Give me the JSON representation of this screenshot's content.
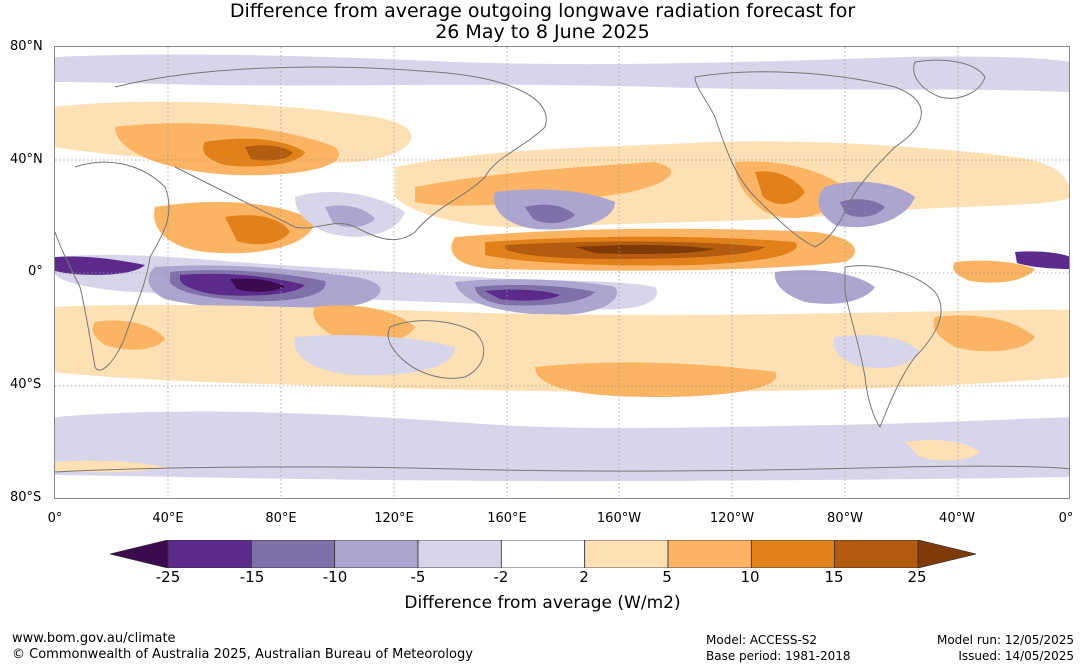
{
  "title": {
    "line1": "Difference from average outgoing longwave radiation forecast for",
    "line2": "26 May to 8 June 2025"
  },
  "map": {
    "lat_labels": [
      "80°N",
      "40°N",
      "0°",
      "40°S",
      "80°S"
    ],
    "lon_labels": [
      "0°",
      "40°E",
      "80°E",
      "120°E",
      "160°E",
      "160°W",
      "120°W",
      "80°W",
      "40°W",
      "0°"
    ]
  },
  "colorbar": {
    "tick_labels": [
      "-25",
      "-15",
      "-10",
      "-5",
      "-2",
      "2",
      "5",
      "10",
      "15",
      "25"
    ],
    "colors": [
      "#3b0a4f",
      "#5b2a8a",
      "#8070aa",
      "#aca5cf",
      "#d7d5e9",
      "#ffffff",
      "#fde0b4",
      "#fbb463",
      "#e2811a",
      "#b35b0f",
      "#7f3a08"
    ],
    "label": "Difference from average (W/m2)"
  },
  "footer": {
    "website": "www.bom.gov.au/climate",
    "copyright": "© Commonwealth of Australia 2025, Australian Bureau of Meteorology",
    "model": "Model: ACCESS-S2",
    "base_period": "Base period: 1981-2018",
    "model_run": "Model run: 12/05/2025",
    "issued": "Issued: 14/05/2025"
  }
}
